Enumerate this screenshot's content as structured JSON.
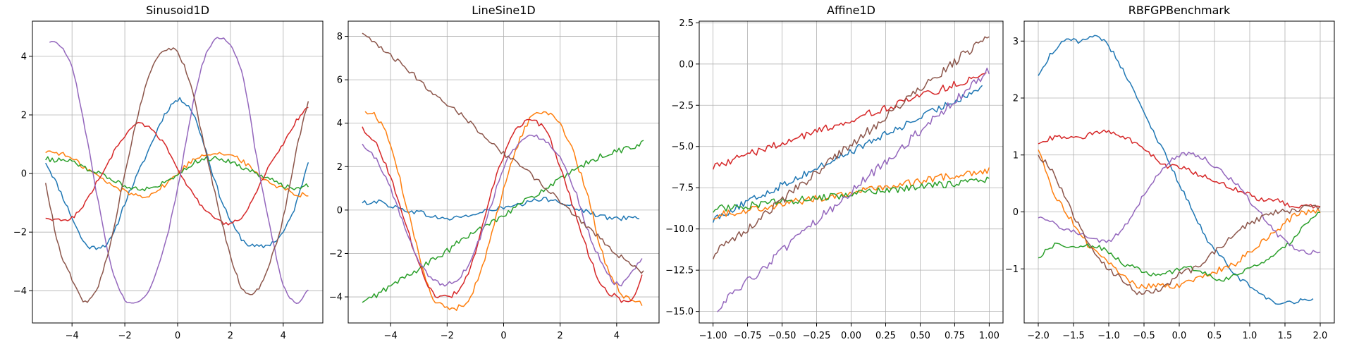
{
  "chart_data": [
    {
      "type": "line",
      "title": "Sinusoid1D",
      "xlabel": "",
      "ylabel": "",
      "xlim": [
        -5.5,
        5.5
      ],
      "ylim": [
        -5.1,
        5.2
      ],
      "xticks": [
        -4,
        -2,
        0,
        2,
        4
      ],
      "yticks": [
        -4,
        -2,
        0,
        2,
        4
      ],
      "grid": true,
      "series": [
        {
          "color": "#1f77b4",
          "noise": 0.08,
          "x": [
            -5.0,
            -4.5,
            -4.0,
            -3.5,
            -3.0,
            -2.5,
            -2.0,
            -1.5,
            -1.0,
            -0.5,
            0.0,
            0.5,
            1.0,
            1.5,
            2.0,
            2.5,
            3.0,
            3.5,
            4.0,
            4.5,
            4.95
          ],
          "y": [
            0.4,
            -0.5,
            -1.5,
            -2.4,
            -2.5,
            -2.2,
            -1.0,
            0.0,
            1.0,
            2.0,
            2.5,
            2.2,
            1.0,
            -0.5,
            -1.6,
            -2.3,
            -2.5,
            -2.4,
            -2.0,
            -1.0,
            0.45
          ]
        },
        {
          "color": "#ff7f0e",
          "noise": 0.08,
          "x": [
            -5.0,
            -4.5,
            -4.0,
            -3.5,
            -3.0,
            -2.5,
            -2.0,
            -1.5,
            -1.0,
            -0.5,
            0.0,
            0.5,
            1.0,
            1.5,
            2.0,
            2.5,
            3.0,
            3.5,
            4.0,
            4.5,
            4.95
          ],
          "y": [
            0.75,
            0.7,
            0.5,
            0.2,
            -0.1,
            -0.4,
            -0.6,
            -0.75,
            -0.7,
            -0.4,
            0.0,
            0.4,
            0.65,
            0.7,
            0.6,
            0.4,
            0.0,
            -0.3,
            -0.5,
            -0.7,
            -0.7
          ]
        },
        {
          "color": "#2ca02c",
          "noise": 0.08,
          "x": [
            -5.0,
            -4.5,
            -4.0,
            -3.5,
            -3.0,
            -2.5,
            -2.0,
            -1.5,
            -1.0,
            -0.5,
            0.0,
            0.5,
            1.0,
            1.5,
            2.0,
            2.5,
            3.0,
            3.5,
            4.0,
            4.5,
            4.95
          ],
          "y": [
            0.5,
            0.45,
            0.4,
            0.2,
            0.0,
            -0.2,
            -0.4,
            -0.5,
            -0.5,
            -0.3,
            0.0,
            0.3,
            0.5,
            0.5,
            0.4,
            0.2,
            0.0,
            -0.2,
            -0.4,
            -0.5,
            -0.4
          ]
        },
        {
          "color": "#d62728",
          "noise": 0.06,
          "x": [
            -5.0,
            -4.5,
            -4.0,
            -3.5,
            -3.0,
            -2.5,
            -2.0,
            -1.5,
            -1.0,
            -0.5,
            0.0,
            0.5,
            1.0,
            1.5,
            2.0,
            2.5,
            3.0,
            3.5,
            4.0,
            4.5,
            4.95
          ],
          "y": [
            -1.5,
            -1.6,
            -1.5,
            -1.0,
            -0.2,
            0.6,
            1.3,
            1.7,
            1.5,
            1.0,
            0.2,
            -0.6,
            -1.2,
            -1.6,
            -1.7,
            -1.4,
            -0.6,
            0.3,
            1.0,
            1.8,
            2.3
          ]
        },
        {
          "color": "#9467bd",
          "noise": 0.05,
          "x": [
            -4.85,
            -4.5,
            -4.0,
            -3.5,
            -3.0,
            -2.5,
            -2.0,
            -1.5,
            -1.0,
            -0.5,
            0.0,
            0.5,
            1.0,
            1.5,
            2.0,
            2.5,
            3.0,
            3.5,
            4.0,
            4.5,
            4.95
          ],
          "y": [
            4.5,
            4.4,
            3.6,
            1.5,
            -1.0,
            -3.2,
            -4.3,
            -4.4,
            -3.8,
            -2.5,
            -0.5,
            2.0,
            3.9,
            4.6,
            4.4,
            3.2,
            0.5,
            -1.8,
            -3.8,
            -4.4,
            -4.0
          ]
        },
        {
          "color": "#8c564b",
          "noise": 0.06,
          "x": [
            -5.0,
            -4.5,
            -4.0,
            -3.5,
            -3.0,
            -2.5,
            -2.0,
            -1.5,
            -1.0,
            -0.5,
            0.0,
            0.5,
            1.0,
            1.5,
            2.0,
            2.5,
            3.0,
            3.5,
            4.0,
            4.5,
            4.95
          ],
          "y": [
            -0.3,
            -2.5,
            -3.6,
            -4.4,
            -3.8,
            -2.2,
            0.0,
            2.0,
            3.5,
            4.2,
            4.1,
            3.0,
            1.0,
            -1.0,
            -2.8,
            -4.0,
            -4.0,
            -3.0,
            -1.5,
            0.8,
            2.5
          ]
        }
      ]
    },
    {
      "type": "line",
      "title": "LineSine1D",
      "xlabel": "",
      "ylabel": "",
      "xlim": [
        -5.5,
        5.5
      ],
      "ylim": [
        -5.2,
        8.7
      ],
      "xticks": [
        -4,
        -2,
        0,
        2,
        4
      ],
      "yticks": [
        -4,
        -2,
        0,
        2,
        4,
        6,
        8
      ],
      "grid": true,
      "series": [
        {
          "color": "#1f77b4",
          "noise": 0.08,
          "x": [
            -5.0,
            -4.5,
            -4.0,
            -3.5,
            -3.0,
            -2.5,
            -2.0,
            -1.5,
            -1.0,
            -0.5,
            0.0,
            0.5,
            1.0,
            1.5,
            2.0,
            2.5,
            3.0,
            3.5,
            4.0,
            4.5,
            4.8
          ],
          "y": [
            0.3,
            0.4,
            0.2,
            0.0,
            -0.1,
            -0.3,
            -0.4,
            -0.3,
            -0.2,
            0.0,
            0.1,
            0.2,
            0.4,
            0.5,
            0.4,
            0.1,
            -0.1,
            -0.3,
            -0.4,
            -0.3,
            -0.3
          ]
        },
        {
          "color": "#ff7f0e",
          "noise": 0.1,
          "x": [
            -4.9,
            -4.5,
            -4.0,
            -3.5,
            -3.0,
            -2.5,
            -2.0,
            -1.5,
            -1.0,
            -0.5,
            0.0,
            0.5,
            1.0,
            1.5,
            2.0,
            2.5,
            3.0,
            3.5,
            4.0,
            4.5,
            4.9
          ],
          "y": [
            4.5,
            4.3,
            3.0,
            0.5,
            -2.0,
            -4.0,
            -4.5,
            -4.4,
            -3.5,
            -1.5,
            1.0,
            3.0,
            4.3,
            4.5,
            4.0,
            2.5,
            0.5,
            -2.0,
            -3.5,
            -4.2,
            -4.3
          ]
        },
        {
          "color": "#2ca02c",
          "noise": 0.1,
          "x": [
            -5.0,
            -4.5,
            -4.0,
            -3.5,
            -3.0,
            -2.5,
            -2.0,
            -1.5,
            -1.0,
            -0.5,
            0.0,
            0.5,
            1.0,
            1.5,
            2.0,
            2.5,
            3.0,
            3.5,
            4.0,
            4.5,
            4.95
          ],
          "y": [
            -4.3,
            -3.9,
            -3.5,
            -3.1,
            -2.7,
            -2.3,
            -1.9,
            -1.4,
            -1.0,
            -0.6,
            -0.2,
            0.2,
            0.6,
            1.0,
            1.4,
            1.8,
            2.2,
            2.5,
            2.7,
            2.9,
            3.1
          ]
        },
        {
          "color": "#d62728",
          "noise": 0.08,
          "x": [
            -5.0,
            -4.5,
            -4.0,
            -3.5,
            -3.0,
            -2.5,
            -2.0,
            -1.5,
            -1.0,
            -0.5,
            0.0,
            0.5,
            1.0,
            1.5,
            2.0,
            2.5,
            3.0,
            3.5,
            4.0,
            4.5,
            4.9
          ],
          "y": [
            3.8,
            3.0,
            1.5,
            -0.5,
            -2.5,
            -3.8,
            -4.0,
            -3.5,
            -2.0,
            0.5,
            2.5,
            3.8,
            4.1,
            3.6,
            2.0,
            0.0,
            -2.0,
            -3.5,
            -4.0,
            -4.2,
            -3.0
          ]
        },
        {
          "color": "#9467bd",
          "noise": 0.08,
          "x": [
            -5.0,
            -4.5,
            -4.0,
            -3.5,
            -3.0,
            -2.5,
            -2.0,
            -1.5,
            -1.0,
            -0.5,
            0.0,
            0.5,
            1.0,
            1.5,
            2.0,
            2.5,
            3.0,
            3.5,
            4.0,
            4.5,
            4.9
          ],
          "y": [
            3.0,
            2.3,
            1.0,
            -0.8,
            -2.3,
            -3.2,
            -3.4,
            -3.0,
            -1.8,
            0.0,
            2.0,
            3.0,
            3.4,
            3.2,
            2.4,
            1.0,
            -1.0,
            -2.5,
            -3.4,
            -3.0,
            -2.2
          ]
        },
        {
          "color": "#8c564b",
          "noise": 0.08,
          "x": [
            -5.0,
            -4.5,
            -4.0,
            -3.5,
            -3.0,
            -2.5,
            -2.0,
            -1.5,
            -1.0,
            -0.5,
            0.0,
            0.5,
            1.0,
            1.5,
            2.0,
            2.5,
            3.0,
            3.5,
            4.0,
            4.5,
            4.95
          ],
          "y": [
            8.1,
            7.6,
            7.1,
            6.6,
            6.0,
            5.4,
            4.9,
            4.4,
            3.8,
            3.2,
            2.6,
            2.2,
            1.6,
            1.0,
            0.4,
            -0.2,
            -0.8,
            -1.4,
            -2.0,
            -2.5,
            -2.9
          ]
        }
      ]
    },
    {
      "type": "line",
      "title": "Affine1D",
      "xlabel": "",
      "ylabel": "",
      "xlim": [
        -1.1,
        1.1
      ],
      "ylim": [
        -15.7,
        2.6
      ],
      "xticks": [
        -1.0,
        -0.75,
        -0.5,
        -0.25,
        0.0,
        0.25,
        0.5,
        0.75,
        1.0
      ],
      "xticklabels": [
        "−1.00",
        "−0.75",
        "−0.50",
        "−0.25",
        "0.00",
        "0.25",
        "0.50",
        "0.75",
        "1.00"
      ],
      "yticks": [
        -15.0,
        -12.5,
        -10.0,
        -7.5,
        -5.0,
        -2.5,
        0.0,
        2.5
      ],
      "yticklabels": [
        "−15.0",
        "−12.5",
        "−10.0",
        "−7.5",
        "−5.0",
        "−2.5",
        "0.0",
        "2.5"
      ],
      "grid": true,
      "series": [
        {
          "color": "#1f77b4",
          "noise": 0.12,
          "x": [
            -1.0,
            0.95
          ],
          "y": [
            -9.4,
            -1.4
          ]
        },
        {
          "color": "#ff7f0e",
          "noise": 0.12,
          "x": [
            -1.0,
            1.0
          ],
          "y": [
            -9.2,
            -6.4
          ]
        },
        {
          "color": "#2ca02c",
          "noise": 0.12,
          "x": [
            -1.0,
            1.0
          ],
          "y": [
            -8.8,
            -7.0
          ]
        },
        {
          "color": "#d62728",
          "noise": 0.12,
          "x": [
            -1.0,
            0.98
          ],
          "y": [
            -6.2,
            -0.6
          ]
        },
        {
          "color": "#9467bd",
          "noise": 0.15,
          "x": [
            -0.97,
            1.0
          ],
          "y": [
            -14.8,
            -0.4
          ]
        },
        {
          "color": "#8c564b",
          "noise": 0.15,
          "x": [
            -1.0,
            1.0
          ],
          "y": [
            -11.6,
            1.8
          ]
        }
      ]
    },
    {
      "type": "line",
      "title": "RBFGPBenchmark",
      "xlabel": "",
      "ylabel": "",
      "xlim": [
        -2.2,
        2.2
      ],
      "ylim": [
        -1.95,
        3.35
      ],
      "xticks": [
        -2.0,
        -1.5,
        -1.0,
        -0.5,
        0.0,
        0.5,
        1.0,
        1.5,
        2.0
      ],
      "xticklabels": [
        "−2.0",
        "−1.5",
        "−1.0",
        "−0.5",
        "0.0",
        "0.5",
        "1.0",
        "1.5",
        "2.0"
      ],
      "yticks": [
        -1,
        0,
        1,
        2,
        3
      ],
      "yticklabels": [
        "−1",
        "0",
        "1",
        "2",
        "3"
      ],
      "grid": true,
      "series": [
        {
          "color": "#1f77b4",
          "noise": 0.08,
          "x": [
            -2.0,
            -1.8,
            -1.6,
            -1.4,
            -1.2,
            -1.0,
            -0.8,
            -0.6,
            -0.4,
            -0.2,
            0.0,
            0.2,
            0.4,
            0.6,
            0.8,
            1.0,
            1.2,
            1.4,
            1.6,
            1.9
          ],
          "y": [
            2.4,
            2.8,
            3.0,
            3.0,
            3.1,
            2.9,
            2.5,
            2.0,
            1.5,
            1.0,
            0.5,
            0.0,
            -0.5,
            -0.8,
            -1.1,
            -1.3,
            -1.5,
            -1.6,
            -1.6,
            -1.5
          ]
        },
        {
          "color": "#ff7f0e",
          "noise": 0.1,
          "x": [
            -2.0,
            -1.8,
            -1.6,
            -1.4,
            -1.2,
            -1.0,
            -0.8,
            -0.6,
            -0.4,
            -0.2,
            0.0,
            0.2,
            0.4,
            0.6,
            0.8,
            1.0,
            1.2,
            1.4,
            1.6,
            1.8,
            2.0
          ],
          "y": [
            1.1,
            0.4,
            0.0,
            -0.4,
            -0.7,
            -0.9,
            -1.1,
            -1.3,
            -1.3,
            -1.3,
            -1.3,
            -1.2,
            -1.1,
            -1.0,
            -0.9,
            -0.7,
            -0.5,
            -0.3,
            -0.1,
            0.0,
            0.0
          ]
        },
        {
          "color": "#2ca02c",
          "noise": 0.08,
          "x": [
            -2.0,
            -1.8,
            -1.6,
            -1.4,
            -1.2,
            -1.0,
            -0.8,
            -0.6,
            -0.4,
            -0.2,
            0.0,
            0.2,
            0.4,
            0.6,
            0.8,
            1.0,
            1.2,
            1.4,
            1.6,
            1.8,
            2.0
          ],
          "y": [
            -0.8,
            -0.6,
            -0.6,
            -0.6,
            -0.6,
            -0.7,
            -0.9,
            -1.0,
            -1.1,
            -1.1,
            -1.0,
            -1.0,
            -1.1,
            -1.2,
            -1.1,
            -1.0,
            -0.9,
            -0.7,
            -0.5,
            -0.2,
            0.0
          ]
        },
        {
          "color": "#d62728",
          "noise": 0.08,
          "x": [
            -2.0,
            -1.8,
            -1.6,
            -1.4,
            -1.2,
            -1.0,
            -0.8,
            -0.6,
            -0.4,
            -0.2,
            0.0,
            0.2,
            0.4,
            0.6,
            0.8,
            1.0,
            1.2,
            1.4,
            1.6,
            1.8,
            2.0
          ],
          "y": [
            1.2,
            1.3,
            1.3,
            1.3,
            1.4,
            1.4,
            1.3,
            1.2,
            1.0,
            0.8,
            0.8,
            0.7,
            0.6,
            0.5,
            0.4,
            0.3,
            0.2,
            0.2,
            0.1,
            0.1,
            0.1
          ]
        },
        {
          "color": "#9467bd",
          "noise": 0.08,
          "x": [
            -2.0,
            -1.8,
            -1.6,
            -1.4,
            -1.2,
            -1.0,
            -0.8,
            -0.6,
            -0.4,
            -0.2,
            0.0,
            0.2,
            0.4,
            0.6,
            0.8,
            1.0,
            1.2,
            1.4,
            1.6,
            1.8,
            2.0
          ],
          "y": [
            -0.1,
            -0.2,
            -0.3,
            -0.4,
            -0.5,
            -0.5,
            -0.3,
            0.1,
            0.5,
            0.8,
            1.0,
            1.0,
            0.9,
            0.7,
            0.5,
            0.2,
            -0.1,
            -0.4,
            -0.6,
            -0.7,
            -0.7
          ]
        },
        {
          "color": "#8c564b",
          "noise": 0.1,
          "x": [
            -2.0,
            -1.8,
            -1.6,
            -1.4,
            -1.2,
            -1.0,
            -0.8,
            -0.6,
            -0.4,
            -0.2,
            0.0,
            0.2,
            0.4,
            0.6,
            0.8,
            1.0,
            1.2,
            1.4,
            1.6,
            1.8,
            2.0
          ],
          "y": [
            1.0,
            0.7,
            0.2,
            -0.3,
            -0.7,
            -1.0,
            -1.2,
            -1.4,
            -1.4,
            -1.3,
            -1.1,
            -1.0,
            -0.8,
            -0.6,
            -0.4,
            -0.2,
            -0.1,
            0.0,
            0.0,
            0.1,
            0.1
          ]
        }
      ]
    }
  ]
}
